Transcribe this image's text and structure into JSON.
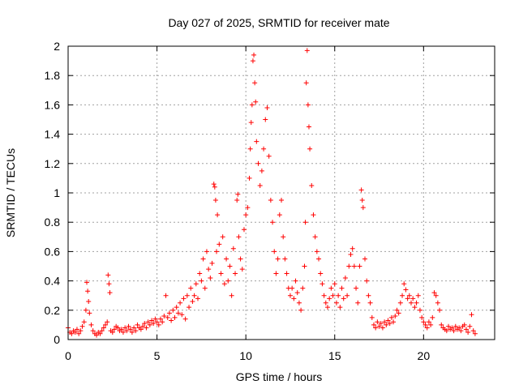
{
  "chart_data": {
    "type": "scatter",
    "title": "Day 027 of 2025, SRMTID for receiver mate",
    "xlabel": "GPS time / hours",
    "ylabel": "SRMTID / TECUs",
    "xlim": [
      0,
      24
    ],
    "ylim": [
      0,
      2
    ],
    "x_ticks": [
      0,
      5,
      10,
      15,
      20
    ],
    "x_tick_labels": [
      "0",
      "5",
      "10",
      "15",
      "20"
    ],
    "y_ticks": [
      0,
      0.2,
      0.4,
      0.6,
      0.8,
      1,
      1.2,
      1.4,
      1.6,
      1.8,
      2
    ],
    "y_tick_labels": [
      "0",
      "0.2",
      "0.4",
      "0.6",
      "0.8",
      "1",
      "1.2",
      "1.4",
      "1.6",
      "1.8",
      "2"
    ],
    "grid": true,
    "marker": "plus",
    "color": "#ff0000",
    "series": [
      {
        "name": "SRMTID",
        "points": [
          [
            0.0,
            0.08
          ],
          [
            0.1,
            0.05
          ],
          [
            0.2,
            0.04
          ],
          [
            0.3,
            0.06
          ],
          [
            0.4,
            0.05
          ],
          [
            0.5,
            0.07
          ],
          [
            0.6,
            0.04
          ],
          [
            0.7,
            0.06
          ],
          [
            0.8,
            0.09
          ],
          [
            0.9,
            0.12
          ],
          [
            1.0,
            0.2
          ],
          [
            1.05,
            0.39
          ],
          [
            1.1,
            0.33
          ],
          [
            1.15,
            0.26
          ],
          [
            1.2,
            0.18
          ],
          [
            1.3,
            0.1
          ],
          [
            1.4,
            0.06
          ],
          [
            1.5,
            0.04
          ],
          [
            1.6,
            0.03
          ],
          [
            1.7,
            0.05
          ],
          [
            1.8,
            0.04
          ],
          [
            1.9,
            0.06
          ],
          [
            2.0,
            0.08
          ],
          [
            2.1,
            0.1
          ],
          [
            2.2,
            0.12
          ],
          [
            2.25,
            0.44
          ],
          [
            2.3,
            0.38
          ],
          [
            2.35,
            0.32
          ],
          [
            2.4,
            0.06
          ],
          [
            2.5,
            0.05
          ],
          [
            2.6,
            0.07
          ],
          [
            2.7,
            0.09
          ],
          [
            2.8,
            0.08
          ],
          [
            2.9,
            0.06
          ],
          [
            3.0,
            0.07
          ],
          [
            3.1,
            0.05
          ],
          [
            3.2,
            0.08
          ],
          [
            3.3,
            0.06
          ],
          [
            3.4,
            0.09
          ],
          [
            3.5,
            0.07
          ],
          [
            3.6,
            0.05
          ],
          [
            3.7,
            0.08
          ],
          [
            3.8,
            0.06
          ],
          [
            3.9,
            0.1
          ],
          [
            4.0,
            0.08
          ],
          [
            4.1,
            0.07
          ],
          [
            4.2,
            0.09
          ],
          [
            4.3,
            0.11
          ],
          [
            4.4,
            0.08
          ],
          [
            4.5,
            0.12
          ],
          [
            4.6,
            0.1
          ],
          [
            4.7,
            0.13
          ],
          [
            4.8,
            0.11
          ],
          [
            4.9,
            0.14
          ],
          [
            5.0,
            0.12
          ],
          [
            5.1,
            0.1
          ],
          [
            5.2,
            0.14
          ],
          [
            5.3,
            0.12
          ],
          [
            5.4,
            0.16
          ],
          [
            5.5,
            0.3
          ],
          [
            5.6,
            0.15
          ],
          [
            5.7,
            0.18
          ],
          [
            5.8,
            0.13
          ],
          [
            5.9,
            0.2
          ],
          [
            6.0,
            0.15
          ],
          [
            6.1,
            0.22
          ],
          [
            6.2,
            0.18
          ],
          [
            6.3,
            0.25
          ],
          [
            6.4,
            0.17
          ],
          [
            6.5,
            0.28
          ],
          [
            6.6,
            0.14
          ],
          [
            6.7,
            0.3
          ],
          [
            6.8,
            0.22
          ],
          [
            6.9,
            0.35
          ],
          [
            7.0,
            0.26
          ],
          [
            7.1,
            0.3
          ],
          [
            7.2,
            0.38
          ],
          [
            7.3,
            0.28
          ],
          [
            7.4,
            0.45
          ],
          [
            7.5,
            0.4
          ],
          [
            7.6,
            0.55
          ],
          [
            7.7,
            0.35
          ],
          [
            7.8,
            0.6
          ],
          [
            7.9,
            0.48
          ],
          [
            8.0,
            0.42
          ],
          [
            8.1,
            0.52
          ],
          [
            8.2,
            1.06
          ],
          [
            8.25,
            1.04
          ],
          [
            8.3,
            0.95
          ],
          [
            8.35,
            0.6
          ],
          [
            8.4,
            0.85
          ],
          [
            8.5,
            0.65
          ],
          [
            8.6,
            0.45
          ],
          [
            8.7,
            0.7
          ],
          [
            8.8,
            0.38
          ],
          [
            8.9,
            0.55
          ],
          [
            9.0,
            0.4
          ],
          [
            9.1,
            0.5
          ],
          [
            9.2,
            0.3
          ],
          [
            9.3,
            0.62
          ],
          [
            9.4,
            0.45
          ],
          [
            9.5,
            0.95
          ],
          [
            9.55,
            0.99
          ],
          [
            9.6,
            0.7
          ],
          [
            9.7,
            0.55
          ],
          [
            9.8,
            0.48
          ],
          [
            9.9,
            0.75
          ],
          [
            10.0,
            0.85
          ],
          [
            10.1,
            0.9
          ],
          [
            10.2,
            1.1
          ],
          [
            10.25,
            1.3
          ],
          [
            10.3,
            1.48
          ],
          [
            10.35,
            1.6
          ],
          [
            10.4,
            1.9
          ],
          [
            10.45,
            1.94
          ],
          [
            10.5,
            1.75
          ],
          [
            10.55,
            1.62
          ],
          [
            10.6,
            1.35
          ],
          [
            10.7,
            1.2
          ],
          [
            10.8,
            1.05
          ],
          [
            10.9,
            1.15
          ],
          [
            11.0,
            1.3
          ],
          [
            11.1,
            1.5
          ],
          [
            11.2,
            1.58
          ],
          [
            11.3,
            1.25
          ],
          [
            11.4,
            0.95
          ],
          [
            11.5,
            0.8
          ],
          [
            11.6,
            0.6
          ],
          [
            11.7,
            0.45
          ],
          [
            11.8,
            0.55
          ],
          [
            11.9,
            0.85
          ],
          [
            12.0,
            0.95
          ],
          [
            12.1,
            0.7
          ],
          [
            12.2,
            0.55
          ],
          [
            12.3,
            0.45
          ],
          [
            12.4,
            0.35
          ],
          [
            12.5,
            0.3
          ],
          [
            12.6,
            0.35
          ],
          [
            12.7,
            0.28
          ],
          [
            12.8,
            0.4
          ],
          [
            12.9,
            0.32
          ],
          [
            13.0,
            0.25
          ],
          [
            13.1,
            0.2
          ],
          [
            13.2,
            0.35
          ],
          [
            13.3,
            0.5
          ],
          [
            13.35,
            0.8
          ],
          [
            13.4,
            1.75
          ],
          [
            13.45,
            1.97
          ],
          [
            13.5,
            1.6
          ],
          [
            13.55,
            1.45
          ],
          [
            13.6,
            1.3
          ],
          [
            13.7,
            1.05
          ],
          [
            13.8,
            0.85
          ],
          [
            13.9,
            0.7
          ],
          [
            14.0,
            0.6
          ],
          [
            14.1,
            0.55
          ],
          [
            14.2,
            0.45
          ],
          [
            14.3,
            0.38
          ],
          [
            14.4,
            0.3
          ],
          [
            14.5,
            0.25
          ],
          [
            14.6,
            0.22
          ],
          [
            14.7,
            0.28
          ],
          [
            14.8,
            0.35
          ],
          [
            14.9,
            0.3
          ],
          [
            15.0,
            0.38
          ],
          [
            15.1,
            0.25
          ],
          [
            15.2,
            0.3
          ],
          [
            15.3,
            0.22
          ],
          [
            15.4,
            0.35
          ],
          [
            15.5,
            0.28
          ],
          [
            15.6,
            0.42
          ],
          [
            15.7,
            0.3
          ],
          [
            15.8,
            0.5
          ],
          [
            15.9,
            0.58
          ],
          [
            16.0,
            0.62
          ],
          [
            16.1,
            0.5
          ],
          [
            16.2,
            0.35
          ],
          [
            16.3,
            0.25
          ],
          [
            16.4,
            0.5
          ],
          [
            16.5,
            1.02
          ],
          [
            16.55,
            0.95
          ],
          [
            16.6,
            0.9
          ],
          [
            16.7,
            0.55
          ],
          [
            16.8,
            0.4
          ],
          [
            16.9,
            0.3
          ],
          [
            17.0,
            0.25
          ],
          [
            17.1,
            0.15
          ],
          [
            17.2,
            0.1
          ],
          [
            17.3,
            0.08
          ],
          [
            17.4,
            0.12
          ],
          [
            17.5,
            0.09
          ],
          [
            17.6,
            0.11
          ],
          [
            17.7,
            0.08
          ],
          [
            17.8,
            0.12
          ],
          [
            17.9,
            0.1
          ],
          [
            18.0,
            0.13
          ],
          [
            18.1,
            0.11
          ],
          [
            18.2,
            0.15
          ],
          [
            18.3,
            0.12
          ],
          [
            18.4,
            0.16
          ],
          [
            18.5,
            0.2
          ],
          [
            18.6,
            0.18
          ],
          [
            18.7,
            0.25
          ],
          [
            18.8,
            0.3
          ],
          [
            18.9,
            0.38
          ],
          [
            19.0,
            0.34
          ],
          [
            19.1,
            0.28
          ],
          [
            19.2,
            0.3
          ],
          [
            19.3,
            0.25
          ],
          [
            19.4,
            0.28
          ],
          [
            19.5,
            0.22
          ],
          [
            19.6,
            0.25
          ],
          [
            19.7,
            0.3
          ],
          [
            19.8,
            0.2
          ],
          [
            19.9,
            0.15
          ],
          [
            20.0,
            0.12
          ],
          [
            20.1,
            0.1
          ],
          [
            20.2,
            0.08
          ],
          [
            20.3,
            0.12
          ],
          [
            20.4,
            0.1
          ],
          [
            20.5,
            0.15
          ],
          [
            20.6,
            0.32
          ],
          [
            20.7,
            0.3
          ],
          [
            20.8,
            0.25
          ],
          [
            20.9,
            0.2
          ],
          [
            21.0,
            0.1
          ],
          [
            21.1,
            0.08
          ],
          [
            21.2,
            0.07
          ],
          [
            21.3,
            0.06
          ],
          [
            21.4,
            0.09
          ],
          [
            21.5,
            0.07
          ],
          [
            21.6,
            0.08
          ],
          [
            21.7,
            0.06
          ],
          [
            21.8,
            0.09
          ],
          [
            21.9,
            0.07
          ],
          [
            22.0,
            0.08
          ],
          [
            22.1,
            0.06
          ],
          [
            22.2,
            0.09
          ],
          [
            22.3,
            0.1
          ],
          [
            22.4,
            0.07
          ],
          [
            22.5,
            0.05
          ],
          [
            22.6,
            0.09
          ],
          [
            22.7,
            0.17
          ],
          [
            22.8,
            0.06
          ],
          [
            22.9,
            0.04
          ]
        ]
      }
    ]
  }
}
